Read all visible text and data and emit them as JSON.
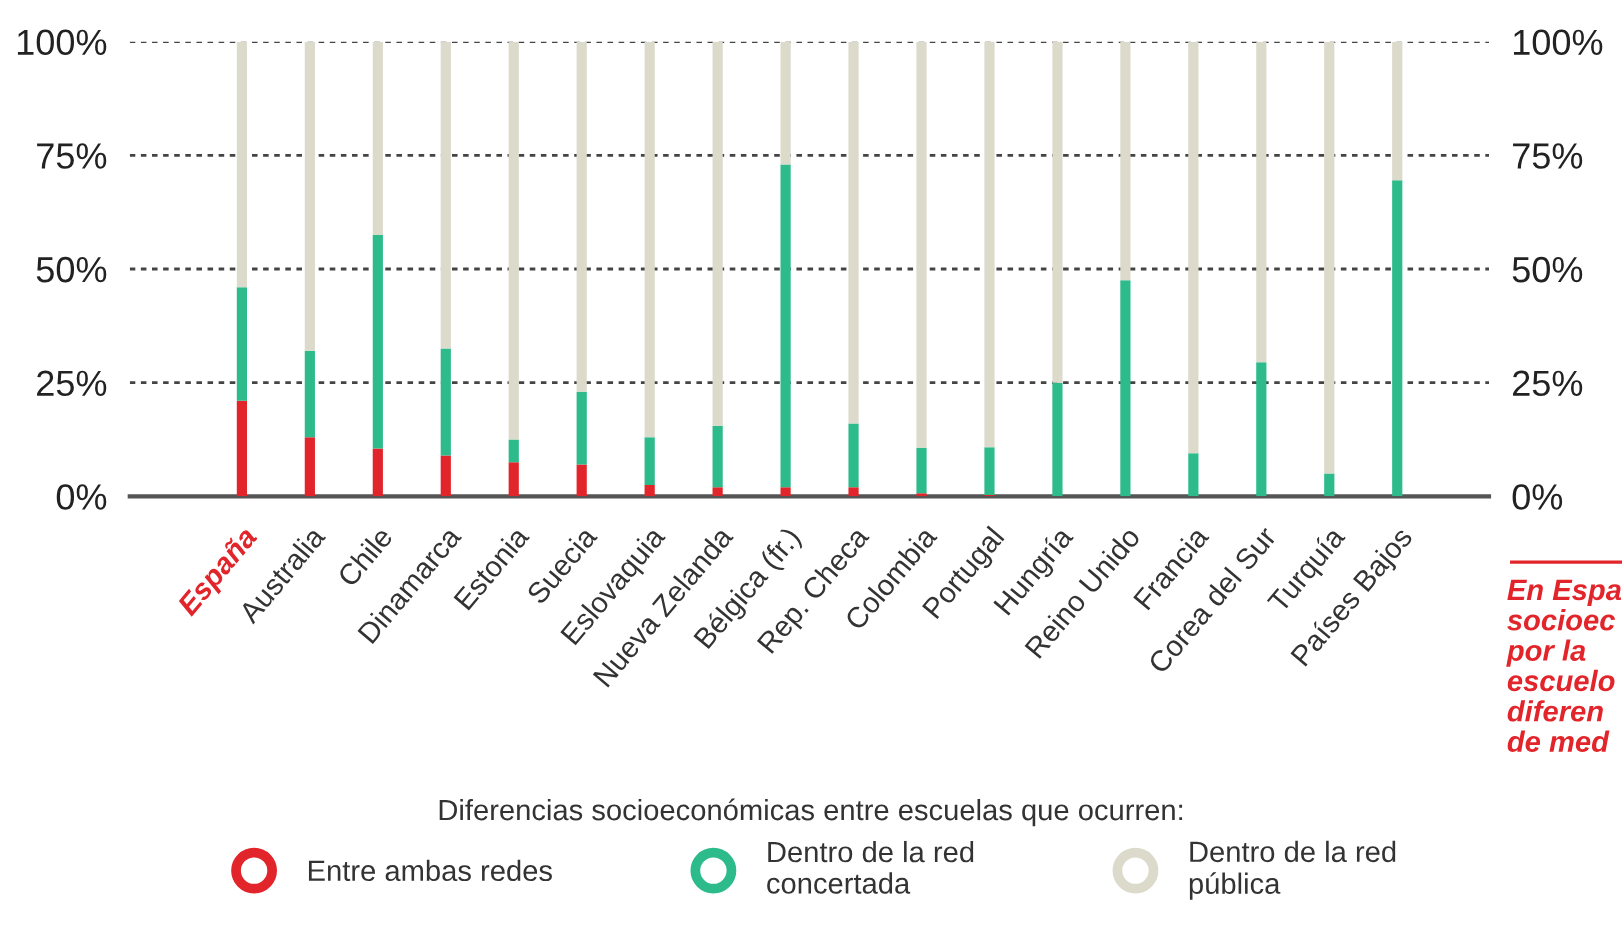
{
  "chart_data": {
    "type": "bar",
    "stacked": true,
    "categories": [
      "España",
      "Australia",
      "Chile",
      "Dinamarca",
      "Estonia",
      "Suecia",
      "Eslovaquia",
      "Nueva Zelanda",
      "Bélgica (fr.)",
      "Rep. Checa",
      "Colombia",
      "Portugal",
      "Hungría",
      "Reino Unido",
      "Francia",
      "Corea del Sur",
      "Turquía",
      "Países Bajos"
    ],
    "series": [
      {
        "name": "Entre ambas redes",
        "color": "#e2252b",
        "values": [
          21,
          13,
          10.5,
          9,
          7.5,
          7,
          2.5,
          2,
          2,
          2,
          0.7,
          0.3,
          0,
          0,
          0,
          0,
          0,
          0
        ]
      },
      {
        "name": "Dentro de la red\nconcertada",
        "color": "#2dbb8b",
        "values": [
          25,
          19,
          47,
          23.5,
          5,
          16,
          10.5,
          13.5,
          71,
          14,
          10,
          10.5,
          25,
          47.5,
          9.5,
          29.5,
          5,
          69.5
        ]
      },
      {
        "name": "Dentro de la red\npública",
        "color": "#dcdacb",
        "values": [
          54,
          68,
          42.5,
          67.5,
          87.5,
          77,
          87,
          84.5,
          27,
          84,
          89.3,
          89.2,
          75,
          52.5,
          90.5,
          70.5,
          95,
          30.5
        ]
      }
    ],
    "ylim": [
      0,
      100
    ],
    "yticks": [
      {
        "value": 0,
        "label": "0%"
      },
      {
        "value": 25,
        "label": "25%"
      },
      {
        "value": 50,
        "label": "50%"
      },
      {
        "value": 75,
        "label": "75%"
      },
      {
        "value": 100,
        "label": "100%"
      }
    ],
    "y2lim": [
      0,
      100
    ],
    "y2ticks": [
      {
        "value": 0,
        "label": "0%"
      },
      {
        "value": 25,
        "label": "25%"
      },
      {
        "value": 50,
        "label": "50%"
      },
      {
        "value": 75,
        "label": "75%"
      },
      {
        "value": 100,
        "label": "100%"
      }
    ],
    "grid": "y",
    "legend": "bottom",
    "legend_title": "Diferencias socioeconómicas entre escuelas que ocurren:",
    "annotations": [
      "En Espa\nsocioec\npor la\nescuelo\ndiferen\nde med"
    ]
  }
}
